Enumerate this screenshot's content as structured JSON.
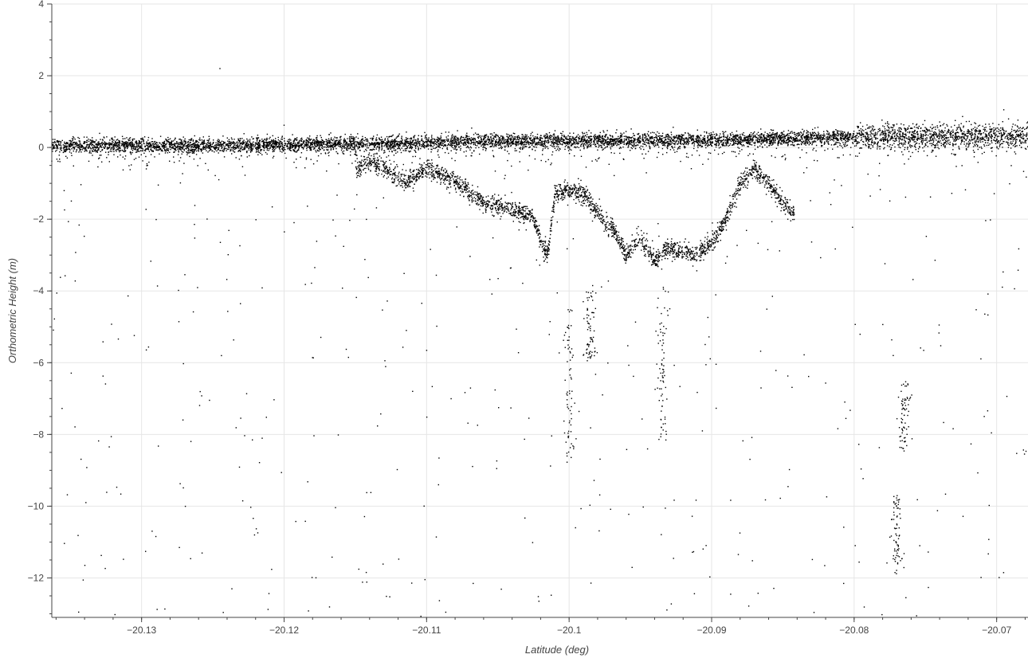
{
  "chart_data": {
    "type": "scatter",
    "title": "",
    "xlabel": "Latitude (deg)",
    "ylabel": "Orthometric Height (m)",
    "xlim": [
      -20.1363,
      -20.0678
    ],
    "ylim": [
      -13.1,
      4.0
    ],
    "x_ticks": [
      -20.13,
      -20.12,
      -20.11,
      -20.1,
      -20.09,
      -20.08,
      -20.07
    ],
    "x_tick_labels": [
      "−20.13",
      "−20.12",
      "−20.11",
      "−20.1",
      "−20.09",
      "−20.08",
      "−20.07"
    ],
    "y_ticks": [
      4,
      2,
      0,
      -2,
      -4,
      -6,
      -8,
      -10,
      -12
    ],
    "y_tick_labels": [
      "4",
      "2",
      "0",
      "−2",
      "−4",
      "−6",
      "−8",
      "−10",
      "−12"
    ],
    "grid": true,
    "marker_color": "#000000",
    "series": [
      {
        "profile": [
          [
            -20.1363,
            0.05
          ],
          [
            -20.13,
            0.05
          ],
          [
            -20.125,
            0.05
          ],
          [
            -20.12,
            0.08
          ],
          [
            -20.115,
            0.1
          ],
          [
            -20.11,
            0.14
          ],
          [
            -20.105,
            0.18
          ],
          [
            -20.1,
            0.18
          ],
          [
            -20.095,
            0.2
          ],
          [
            -20.09,
            0.2
          ],
          [
            -20.085,
            0.25
          ],
          [
            -20.08,
            0.28
          ],
          [
            -20.075,
            0.3
          ],
          [
            -20.07,
            0.32
          ],
          [
            -20.0678,
            0.33
          ]
        ],
        "subsurface_profile": [
          [
            -20.115,
            -0.6
          ],
          [
            -20.114,
            -0.35
          ],
          [
            -20.113,
            -0.55
          ],
          [
            -20.112,
            -0.85
          ],
          [
            -20.1115,
            -1.0
          ],
          [
            -20.111,
            -0.85
          ],
          [
            -20.11,
            -0.6
          ],
          [
            -20.109,
            -0.75
          ],
          [
            -20.108,
            -0.9
          ],
          [
            -20.107,
            -1.3
          ],
          [
            -20.106,
            -1.5
          ],
          [
            -20.105,
            -1.65
          ],
          [
            -20.104,
            -1.75
          ],
          [
            -20.103,
            -1.85
          ],
          [
            -20.1025,
            -2.0
          ],
          [
            -20.102,
            -2.6
          ],
          [
            -20.1015,
            -3.0
          ],
          [
            -20.101,
            -1.3
          ],
          [
            -20.1,
            -1.15
          ],
          [
            -20.099,
            -1.3
          ],
          [
            -20.098,
            -1.8
          ],
          [
            -20.0975,
            -2.1
          ],
          [
            -20.097,
            -2.2
          ],
          [
            -20.096,
            -3.0
          ],
          [
            -20.095,
            -2.5
          ],
          [
            -20.094,
            -3.2
          ],
          [
            -20.093,
            -2.8
          ],
          [
            -20.092,
            -2.9
          ],
          [
            -20.091,
            -3.0
          ],
          [
            -20.09,
            -2.7
          ],
          [
            -20.089,
            -2.0
          ],
          [
            -20.088,
            -1.0
          ],
          [
            -20.087,
            -0.6
          ],
          [
            -20.086,
            -1.0
          ],
          [
            -20.085,
            -1.6
          ],
          [
            -20.0842,
            -1.8
          ]
        ],
        "deep_streaks": [
          [
            -20.0985,
            -4.0,
            -6.0
          ],
          [
            -20.0935,
            -4.0,
            -8.2
          ],
          [
            -20.0765,
            -6.5,
            -8.5
          ],
          [
            -20.077,
            -9.7,
            -11.9
          ],
          [
            -20.1,
            -4.5,
            -8.8
          ]
        ]
      }
    ]
  }
}
